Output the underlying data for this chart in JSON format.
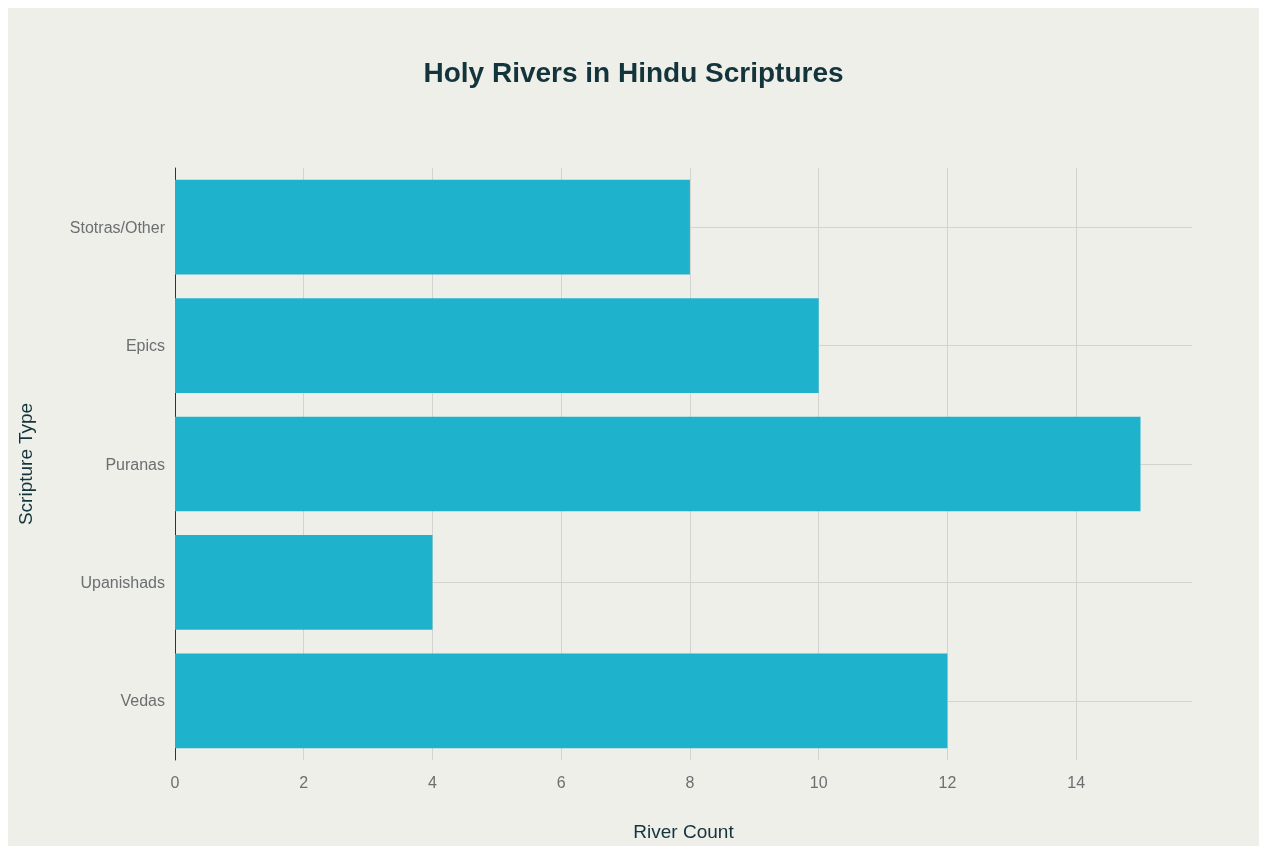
{
  "chart_data": {
    "type": "bar",
    "orientation": "horizontal",
    "title": "Holy Rivers in Hindu Scriptures",
    "xlabel": "River Count",
    "ylabel": "Scripture Type",
    "categories": [
      "Stotras/Other",
      "Epics",
      "Puranas",
      "Upanishads",
      "Vedas"
    ],
    "values": [
      8,
      10,
      15,
      4,
      12
    ],
    "color": "#1fb2cc",
    "xlim": [
      0,
      15.8
    ],
    "xticks": [
      0,
      2,
      4,
      6,
      8,
      10,
      12,
      14
    ],
    "grid": true
  }
}
